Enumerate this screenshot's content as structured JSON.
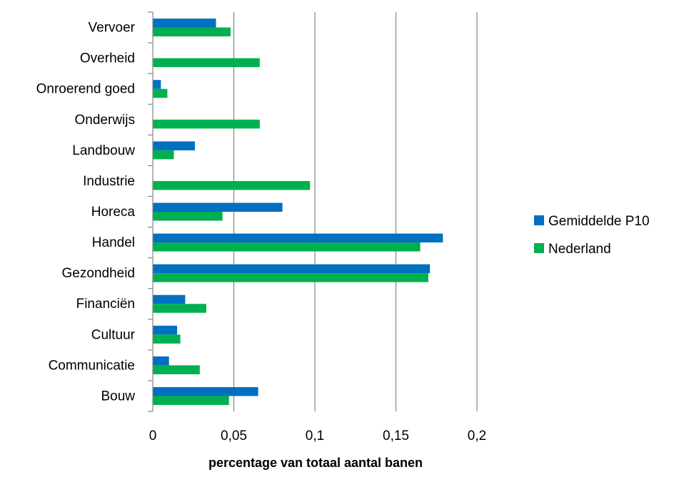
{
  "chart_data": {
    "type": "bar",
    "orientation": "horizontal",
    "categories": [
      "Vervoer",
      "Overheid",
      "Onroerend goed",
      "Onderwijs",
      "Landbouw",
      "Industrie",
      "Horeca",
      "Handel",
      "Gezondheid",
      "Financiën",
      "Cultuur",
      "Communicatie",
      "Bouw"
    ],
    "series": [
      {
        "name": "Gemiddelde P10",
        "color": "#0070C0",
        "values": [
          0.039,
          0,
          0.005,
          0,
          0.026,
          0,
          0.08,
          0.179,
          0.171,
          0.02,
          0.015,
          0.01,
          0.065
        ]
      },
      {
        "name": "Nederland",
        "color": "#00B050",
        "values": [
          0.048,
          0.066,
          0.009,
          0.066,
          0.013,
          0.097,
          0.043,
          0.165,
          0.17,
          0.033,
          0.017,
          0.029,
          0.047
        ]
      }
    ],
    "xlabel": "percentage van totaal aantal banen",
    "xlim": [
      0,
      0.2
    ],
    "xticks": [
      {
        "value": 0,
        "label": "0"
      },
      {
        "value": 0.05,
        "label": "0,05"
      },
      {
        "value": 0.1,
        "label": "0,1"
      },
      {
        "value": 0.15,
        "label": "0,15"
      },
      {
        "value": 0.2,
        "label": "0,2"
      }
    ],
    "grid": true,
    "legend_position": "right"
  }
}
